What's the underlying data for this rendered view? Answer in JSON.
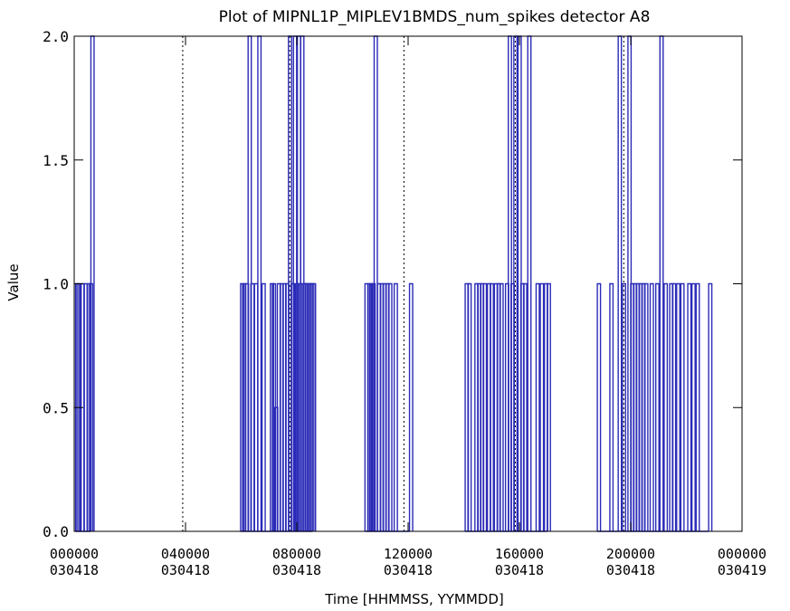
{
  "chart_data": {
    "type": "line",
    "title": "Plot of MIPNL1P_MIPLEV1BMDS_num_spikes detector A8",
    "xlabel": "Time [HHMMSS, YYMMDD]",
    "ylabel": "Value",
    "ylim": [
      0,
      2
    ],
    "xlim_hours": [
      0,
      24
    ],
    "y_ticks": [
      {
        "value": 0,
        "label": "0.0"
      },
      {
        "value": 0.5,
        "label": "0.5"
      },
      {
        "value": 1,
        "label": "1.0"
      },
      {
        "value": 1.5,
        "label": "1.5"
      },
      {
        "value": 2,
        "label": "2.0"
      }
    ],
    "x_ticks": [
      {
        "hours": 0,
        "time": "000000",
        "date": "030418"
      },
      {
        "hours": 4,
        "time": "040000",
        "date": "030418"
      },
      {
        "hours": 8,
        "time": "080000",
        "date": "030418"
      },
      {
        "hours": 12,
        "time": "120000",
        "date": "030418"
      },
      {
        "hours": 16,
        "time": "160000",
        "date": "030418"
      },
      {
        "hours": 20,
        "time": "200000",
        "date": "030418"
      },
      {
        "hours": 24,
        "time": "000000",
        "date": "030419"
      }
    ],
    "dotted_lines_hours": [
      3.9,
      7.75,
      11.85,
      15.85,
      19.75
    ],
    "series_color": "#2b2bb8",
    "spikes": [
      {
        "x": 0.05,
        "y": 1.0
      },
      {
        "x": 0.1,
        "y": 1.0
      },
      {
        "x": 0.25,
        "y": 1.0
      },
      {
        "x": 0.35,
        "y": 1.0
      },
      {
        "x": 0.48,
        "y": 1.0
      },
      {
        "x": 0.55,
        "y": 1.0
      },
      {
        "x": 0.6,
        "y": 2.0
      },
      {
        "x": 5.98,
        "y": 1.0
      },
      {
        "x": 6.05,
        "y": 1.0
      },
      {
        "x": 6.15,
        "y": 1.0
      },
      {
        "x": 6.25,
        "y": 2.0
      },
      {
        "x": 6.35,
        "y": 1.0
      },
      {
        "x": 6.48,
        "y": 1.0
      },
      {
        "x": 6.6,
        "y": 2.0
      },
      {
        "x": 6.75,
        "y": 1.0
      },
      {
        "x": 7.05,
        "y": 1.0
      },
      {
        "x": 7.12,
        "y": 1.0
      },
      {
        "x": 7.2,
        "y": 0.5
      },
      {
        "x": 7.3,
        "y": 1.0
      },
      {
        "x": 7.4,
        "y": 1.0
      },
      {
        "x": 7.5,
        "y": 1.0
      },
      {
        "x": 7.6,
        "y": 1.0
      },
      {
        "x": 7.7,
        "y": 2.0
      },
      {
        "x": 7.8,
        "y": 1.0
      },
      {
        "x": 7.88,
        "y": 2.0
      },
      {
        "x": 7.95,
        "y": 1.0
      },
      {
        "x": 8.02,
        "y": 2.0
      },
      {
        "x": 8.08,
        "y": 1.0
      },
      {
        "x": 8.14,
        "y": 2.0
      },
      {
        "x": 8.2,
        "y": 1.0
      },
      {
        "x": 8.26,
        "y": 1.0
      },
      {
        "x": 8.32,
        "y": 1.0
      },
      {
        "x": 8.38,
        "y": 1.0
      },
      {
        "x": 8.44,
        "y": 1.0
      },
      {
        "x": 8.5,
        "y": 1.0
      },
      {
        "x": 8.56,
        "y": 1.0
      },
      {
        "x": 10.45,
        "y": 1.0
      },
      {
        "x": 10.55,
        "y": 1.0
      },
      {
        "x": 10.62,
        "y": 1.0
      },
      {
        "x": 10.7,
        "y": 1.0
      },
      {
        "x": 10.78,
        "y": 2.0
      },
      {
        "x": 10.9,
        "y": 1.0
      },
      {
        "x": 11.0,
        "y": 1.0
      },
      {
        "x": 11.1,
        "y": 1.0
      },
      {
        "x": 11.2,
        "y": 1.0
      },
      {
        "x": 11.3,
        "y": 1.0
      },
      {
        "x": 11.5,
        "y": 1.0
      },
      {
        "x": 12.05,
        "y": 1.0
      },
      {
        "x": 14.05,
        "y": 1.0
      },
      {
        "x": 14.15,
        "y": 1.0
      },
      {
        "x": 14.4,
        "y": 1.0
      },
      {
        "x": 14.5,
        "y": 1.0
      },
      {
        "x": 14.6,
        "y": 1.0
      },
      {
        "x": 14.7,
        "y": 1.0
      },
      {
        "x": 14.85,
        "y": 1.0
      },
      {
        "x": 14.95,
        "y": 1.0
      },
      {
        "x": 15.1,
        "y": 1.0
      },
      {
        "x": 15.2,
        "y": 1.0
      },
      {
        "x": 15.3,
        "y": 1.0
      },
      {
        "x": 15.5,
        "y": 1.0
      },
      {
        "x": 15.6,
        "y": 2.0
      },
      {
        "x": 15.7,
        "y": 1.0
      },
      {
        "x": 15.8,
        "y": 2.0
      },
      {
        "x": 15.95,
        "y": 2.0
      },
      {
        "x": 16.05,
        "y": 1.0
      },
      {
        "x": 16.15,
        "y": 1.0
      },
      {
        "x": 16.3,
        "y": 2.0
      },
      {
        "x": 16.6,
        "y": 1.0
      },
      {
        "x": 16.75,
        "y": 1.0
      },
      {
        "x": 16.9,
        "y": 1.0
      },
      {
        "x": 17.0,
        "y": 1.0
      },
      {
        "x": 18.8,
        "y": 1.0
      },
      {
        "x": 19.25,
        "y": 1.0
      },
      {
        "x": 19.55,
        "y": 2.0
      },
      {
        "x": 19.7,
        "y": 1.0
      },
      {
        "x": 19.9,
        "y": 2.0
      },
      {
        "x": 20.0,
        "y": 1.0
      },
      {
        "x": 20.1,
        "y": 1.0
      },
      {
        "x": 20.2,
        "y": 1.0
      },
      {
        "x": 20.3,
        "y": 1.0
      },
      {
        "x": 20.4,
        "y": 1.0
      },
      {
        "x": 20.5,
        "y": 1.0
      },
      {
        "x": 20.7,
        "y": 1.0
      },
      {
        "x": 20.9,
        "y": 1.0
      },
      {
        "x": 21.05,
        "y": 2.0
      },
      {
        "x": 21.2,
        "y": 1.0
      },
      {
        "x": 21.4,
        "y": 1.0
      },
      {
        "x": 21.5,
        "y": 1.0
      },
      {
        "x": 21.65,
        "y": 1.0
      },
      {
        "x": 21.8,
        "y": 1.0
      },
      {
        "x": 22.05,
        "y": 1.0
      },
      {
        "x": 22.2,
        "y": 1.0
      },
      {
        "x": 22.35,
        "y": 1.0
      },
      {
        "x": 22.8,
        "y": 1.0
      }
    ],
    "grid": false,
    "legend": "none"
  }
}
